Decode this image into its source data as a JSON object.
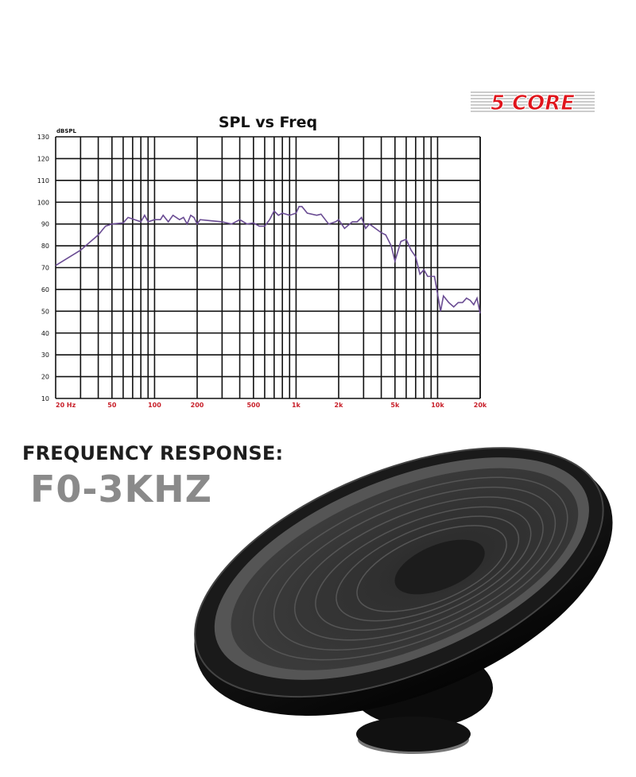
{
  "brand": {
    "logo_text": "5 CORE",
    "color": "#e0141b"
  },
  "chart_data": {
    "type": "line",
    "title": "SPL vs Freq",
    "ylabel": "dBSPL",
    "xlabel": "",
    "x_scale": "log",
    "xlim": [
      20,
      20000
    ],
    "ylim": [
      10,
      130
    ],
    "grid": true,
    "x_tick_labels": [
      {
        "value": 20,
        "label": "20 Hz"
      },
      {
        "value": 50,
        "label": "50"
      },
      {
        "value": 100,
        "label": "100"
      },
      {
        "value": 200,
        "label": "200"
      },
      {
        "value": 500,
        "label": "500"
      },
      {
        "value": 1000,
        "label": "1k"
      },
      {
        "value": 2000,
        "label": "2k"
      },
      {
        "value": 5000,
        "label": "5k"
      },
      {
        "value": 10000,
        "label": "10k"
      },
      {
        "value": 20000,
        "label": "20k"
      }
    ],
    "y_ticks": [
      10,
      20,
      30,
      40,
      50,
      60,
      70,
      80,
      90,
      100,
      110,
      120,
      130
    ],
    "line_color": "#6a4c93",
    "tick_label_color": "#c8202a",
    "series": [
      {
        "x": [
          20,
          30,
          40,
          45,
          50,
          60,
          65,
          80,
          85,
          90,
          100,
          110,
          115,
          125,
          135,
          150,
          160,
          170,
          180,
          190,
          200,
          210,
          250,
          300,
          350,
          400,
          450,
          500,
          550,
          600,
          650,
          700,
          750,
          800,
          900,
          1000,
          1050,
          1100,
          1200,
          1400,
          1500,
          1700,
          1900,
          2000,
          2200,
          2500,
          2700,
          2900,
          3100,
          3300,
          4000,
          4300,
          4700,
          5000,
          5500,
          6000,
          6500,
          7000,
          7500,
          8000,
          8500,
          9500,
          10500,
          11000,
          12000,
          13000,
          14000,
          15000,
          16000,
          17000,
          18000,
          19000,
          20000
        ],
        "y": [
          71,
          78,
          85,
          89,
          90,
          90.5,
          93,
          91,
          94,
          91,
          92,
          92,
          94,
          91,
          94,
          92,
          93,
          90,
          94,
          93,
          90,
          92,
          91.5,
          91,
          90,
          92,
          90,
          90.5,
          89,
          89,
          92,
          96,
          94,
          95,
          94,
          95,
          98,
          98,
          95,
          94,
          94.5,
          90,
          91,
          92,
          88,
          91,
          91,
          93,
          88,
          90,
          86,
          85,
          80,
          73,
          82,
          83,
          78,
          75,
          67,
          69,
          66,
          66,
          50,
          57,
          54,
          52,
          54,
          54,
          56,
          55,
          53,
          56,
          49
        ]
      }
    ]
  },
  "feature": {
    "label": "FREQUENCY RESPONSE:",
    "value": "F0-3KHZ"
  }
}
